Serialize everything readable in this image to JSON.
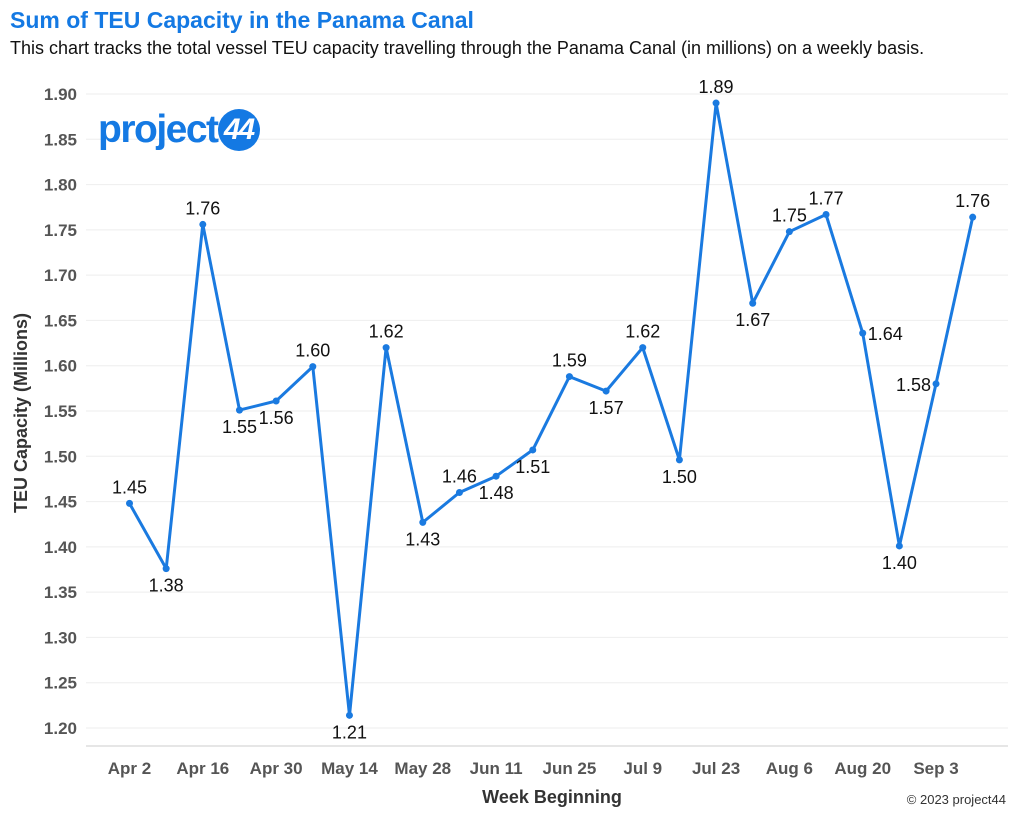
{
  "header": {
    "title": "Sum of TEU Capacity in the Panama Canal",
    "subtitle": "This chart tracks the total vessel TEU capacity travelling through the Panama Canal (in millions) on a weekly basis."
  },
  "logo": {
    "text": "project",
    "badge": "44"
  },
  "footer": {
    "copyright": "© 2023 project44"
  },
  "colors": {
    "accent": "#1479e3",
    "line": "#1a7ae0",
    "grid": "#eeeeee",
    "axis_text": "#555555"
  },
  "chart_data": {
    "type": "line",
    "title": "Sum of TEU Capacity in the Panama Canal",
    "xlabel": "Week Beginning",
    "ylabel": "TEU Capacity (Millions)",
    "ylim": [
      1.18,
      1.92
    ],
    "yticks": [
      1.2,
      1.25,
      1.3,
      1.35,
      1.4,
      1.45,
      1.5,
      1.55,
      1.6,
      1.65,
      1.7,
      1.75,
      1.8,
      1.85,
      1.9
    ],
    "ytick_labels": [
      "1.20",
      "1.25",
      "1.30",
      "1.35",
      "1.40",
      "1.45",
      "1.50",
      "1.55",
      "1.60",
      "1.65",
      "1.70",
      "1.75",
      "1.80",
      "1.85",
      "1.90"
    ],
    "xtick_labels": [
      "Apr 2",
      "Apr 16",
      "Apr 30",
      "May 14",
      "May 28",
      "Jun 11",
      "Jun 25",
      "Jul 9",
      "Jul 23",
      "Aug 6",
      "Aug 20",
      "Sep 3"
    ],
    "grid": true,
    "x": [
      "Apr 2",
      "Apr 9",
      "Apr 16",
      "Apr 23",
      "Apr 30",
      "May 7",
      "May 14",
      "May 21",
      "May 28",
      "Jun 4",
      "Jun 11",
      "Jun 18",
      "Jun 25",
      "Jul 2",
      "Jul 9",
      "Jul 16",
      "Jul 23",
      "Jul 30",
      "Aug 6",
      "Aug 13",
      "Aug 20",
      "Aug 27",
      "Sep 3",
      "Sep 10"
    ],
    "series": [
      {
        "values": [
          1.448,
          1.376,
          1.756,
          1.551,
          1.561,
          1.599,
          1.214,
          1.62,
          1.427,
          1.46,
          1.478,
          1.507,
          1.588,
          1.572,
          1.62,
          1.496,
          1.89,
          1.669,
          1.748,
          1.767,
          1.636,
          1.401,
          1.58,
          1.764
        ],
        "labels": [
          "1.45",
          "1.38",
          "1.76",
          "1.55",
          "1.56",
          "1.60",
          "1.21",
          "1.62",
          "1.43",
          "1.46",
          "1.48",
          "1.51",
          "1.59",
          "1.57",
          "1.62",
          "1.50",
          "1.89",
          "1.67",
          "1.75",
          "1.77",
          "1.64",
          "1.40",
          "1.58",
          "1.76"
        ],
        "label_pos": [
          "above",
          "below",
          "above",
          "below",
          "below",
          "above",
          "below",
          "above",
          "below",
          "above",
          "below",
          "below",
          "above",
          "below",
          "above",
          "below",
          "above",
          "below",
          "above",
          "above",
          "right",
          "below",
          "left",
          "above"
        ]
      }
    ]
  }
}
